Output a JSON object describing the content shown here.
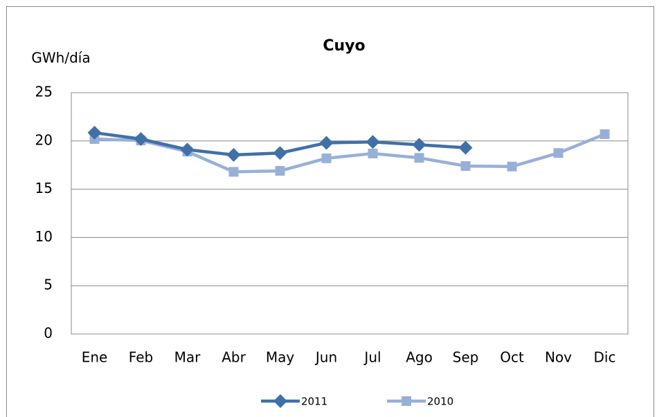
{
  "chart_data": {
    "type": "line",
    "title": "Cuyo",
    "y_label": "GWh/día",
    "categories": [
      "Ene",
      "Feb",
      "Mar",
      "Abr",
      "May",
      "Jun",
      "Jul",
      "Ago",
      "Sep",
      "Oct",
      "Nov",
      "Dic"
    ],
    "series": [
      {
        "name": "2011",
        "color": "#4170a8",
        "marker": "diamond",
        "values": [
          20.85,
          20.2,
          19.1,
          18.55,
          18.75,
          19.8,
          19.9,
          19.6,
          19.3,
          null,
          null,
          null
        ]
      },
      {
        "name": "2010",
        "color": "#98b0d8",
        "marker": "square",
        "values": [
          20.2,
          20.05,
          18.9,
          16.8,
          16.9,
          18.2,
          18.7,
          18.25,
          17.4,
          17.35,
          18.75,
          20.7
        ]
      }
    ],
    "ylim": [
      0,
      25
    ],
    "yticks": [
      0,
      5,
      10,
      15,
      20,
      25
    ],
    "grid": true,
    "legend": "bottom"
  }
}
